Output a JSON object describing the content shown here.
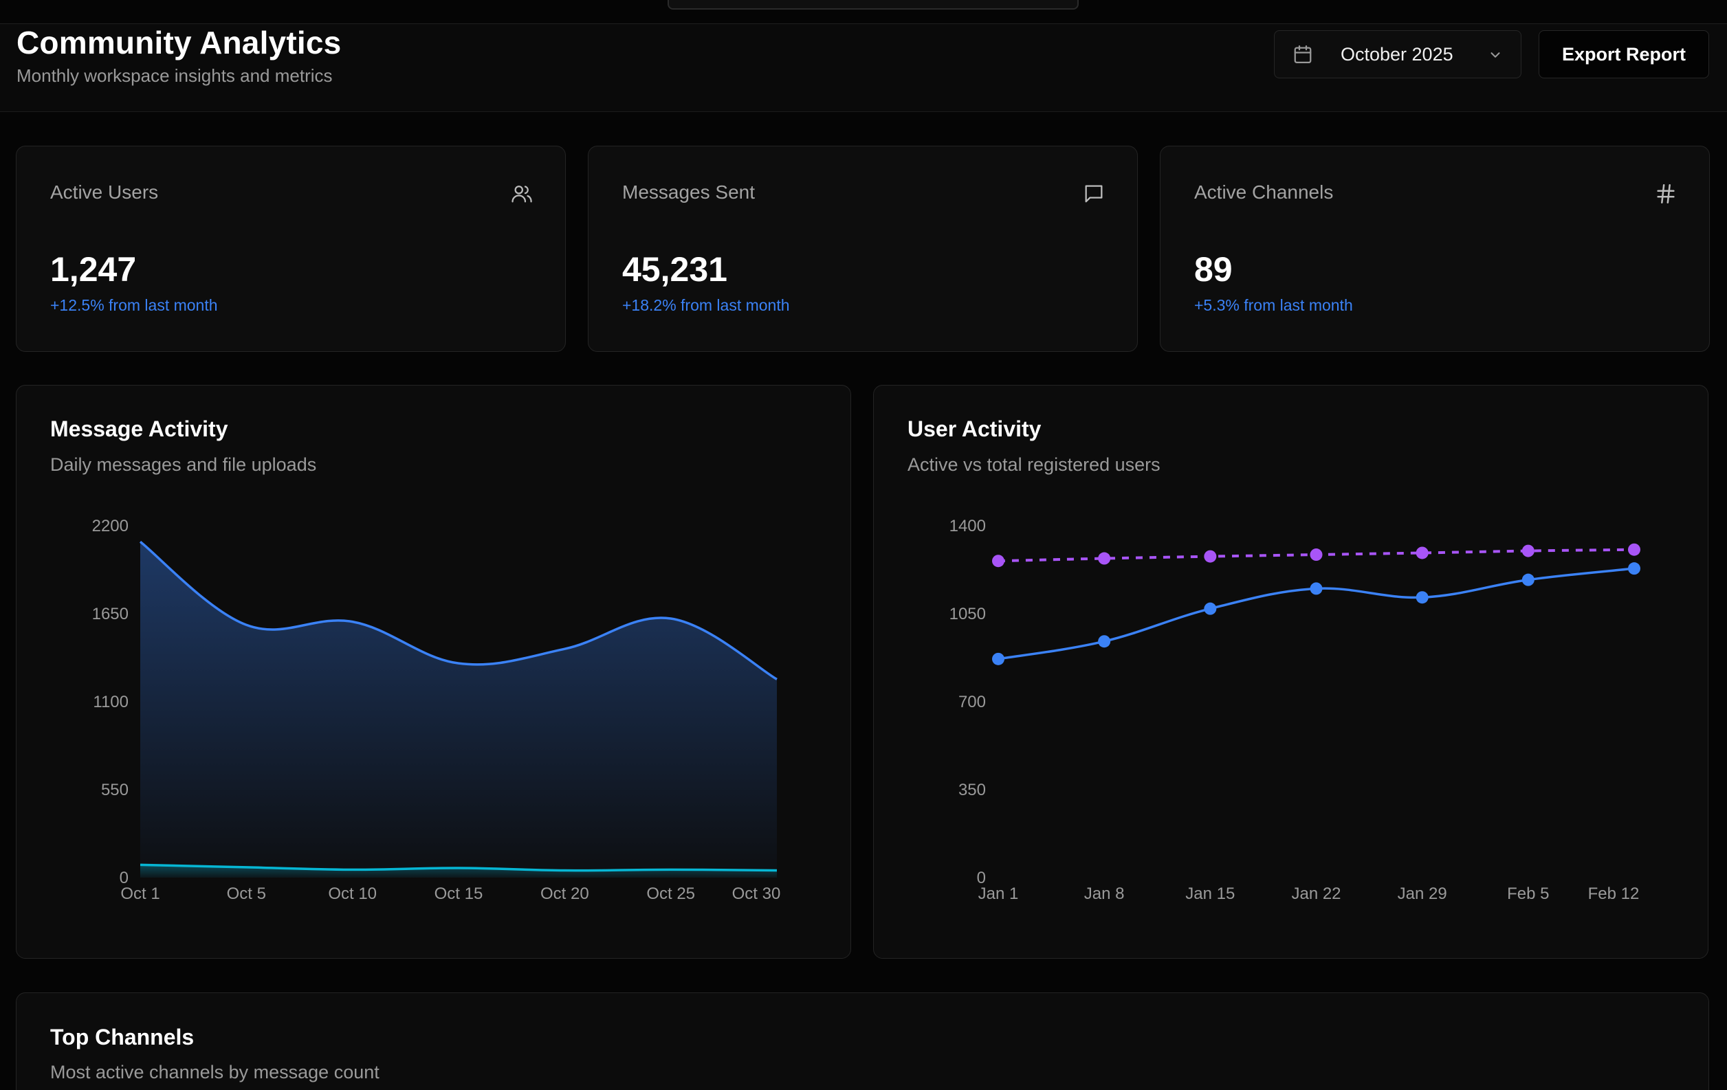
{
  "header": {
    "title": "Community Analytics",
    "subtitle": "Monthly workspace insights and metrics",
    "date_selector": "October 2025",
    "export_label": "Export Report"
  },
  "stats": [
    {
      "label": "Active Users",
      "value": "1,247",
      "delta": "+12.5% from last month",
      "icon": "users-icon"
    },
    {
      "label": "Messages Sent",
      "value": "45,231",
      "delta": "+18.2% from last month",
      "icon": "message-icon"
    },
    {
      "label": "Active Channels",
      "value": "89",
      "delta": "+5.3% from last month",
      "icon": "hash-icon"
    }
  ],
  "colors": {
    "accent_blue": "#3b82f6",
    "accent_cyan": "#06b6d4",
    "accent_purple": "#a855f7"
  },
  "charts": {
    "message_activity": {
      "title": "Message Activity",
      "subtitle": "Daily messages and file uploads"
    },
    "user_activity": {
      "title": "User Activity",
      "subtitle": "Active vs total registered users"
    }
  },
  "top_channels": {
    "title": "Top Channels",
    "subtitle": "Most active channels by message count"
  },
  "chart_data": [
    {
      "type": "area",
      "title": "Message Activity",
      "categories": [
        "Oct 1",
        "Oct 5",
        "Oct 10",
        "Oct 15",
        "Oct 20",
        "Oct 25",
        "Oct 30"
      ],
      "ylim": [
        0,
        2200
      ],
      "yticks": [
        0,
        550,
        1100,
        1650,
        2200
      ],
      "series": [
        {
          "values": [
            2100,
            1580,
            1600,
            1340,
            1430,
            1620,
            1240
          ]
        },
        {
          "values": [
            80,
            65,
            50,
            60,
            45,
            50,
            45
          ]
        }
      ],
      "grid": false
    },
    {
      "type": "line",
      "title": "User Activity",
      "categories": [
        "Jan 1",
        "Jan 8",
        "Jan 15",
        "Jan 22",
        "Jan 29",
        "Feb 5",
        "Feb 12"
      ],
      "ylim": [
        0,
        1400
      ],
      "yticks": [
        0,
        350,
        700,
        1050,
        1400
      ],
      "series": [
        {
          "values": [
            1260,
            1270,
            1278,
            1285,
            1292,
            1300,
            1305
          ],
          "style": "dashed"
        },
        {
          "values": [
            870,
            940,
            1070,
            1150,
            1115,
            1185,
            1230
          ],
          "style": "solid"
        }
      ],
      "grid": false
    }
  ]
}
